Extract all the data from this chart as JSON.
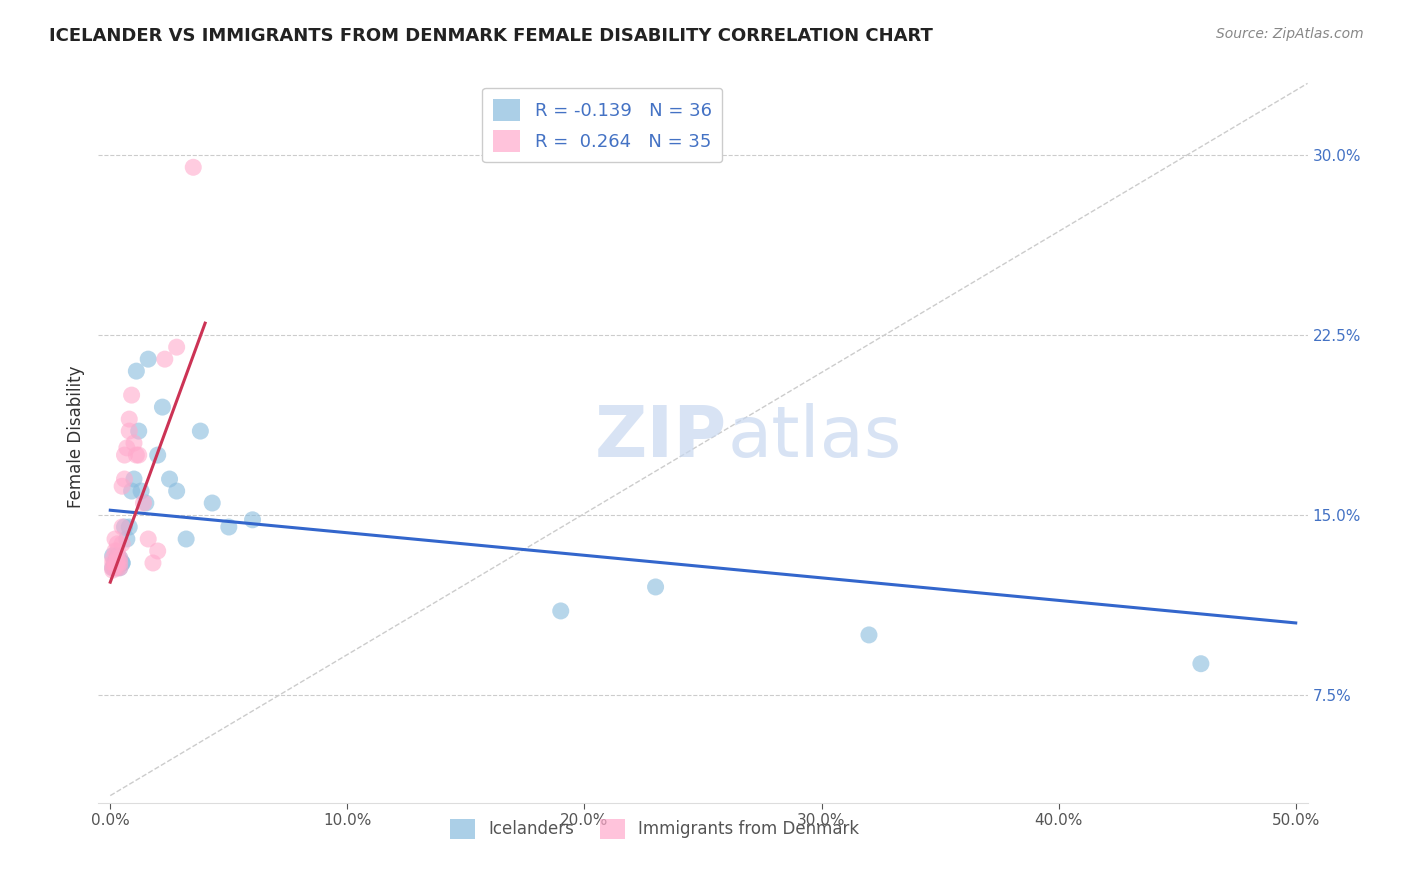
{
  "title": "ICELANDER VS IMMIGRANTS FROM DENMARK FEMALE DISABILITY CORRELATION CHART",
  "source": "Source: ZipAtlas.com",
  "xlabel_ticks": [
    "0.0%",
    "10.0%",
    "20.0%",
    "30.0%",
    "40.0%",
    "50.0%"
  ],
  "xlabel_vals": [
    0.0,
    0.1,
    0.2,
    0.3,
    0.4,
    0.5
  ],
  "ylabel_ticks": [
    "7.5%",
    "15.0%",
    "22.5%",
    "30.0%"
  ],
  "ylabel_vals": [
    0.075,
    0.15,
    0.225,
    0.3
  ],
  "xlim": [
    -0.005,
    0.505
  ],
  "ylim": [
    0.03,
    0.335
  ],
  "ylabel": "Female Disability",
  "legend1_label": "R = -0.139   N = 36",
  "legend2_label": "R =  0.264   N = 35",
  "legend1_color": "#88bbdd",
  "legend2_color": "#ffaacc",
  "watermark_zip": "ZIP",
  "watermark_atlas": "atlas",
  "icelanders_x": [
    0.001,
    0.001,
    0.002,
    0.002,
    0.002,
    0.003,
    0.003,
    0.003,
    0.003,
    0.004,
    0.004,
    0.005,
    0.005,
    0.006,
    0.007,
    0.008,
    0.009,
    0.01,
    0.011,
    0.012,
    0.013,
    0.015,
    0.016,
    0.02,
    0.022,
    0.025,
    0.028,
    0.032,
    0.038,
    0.043,
    0.05,
    0.06,
    0.19,
    0.23,
    0.32,
    0.46
  ],
  "icelanders_y": [
    0.128,
    0.133,
    0.13,
    0.13,
    0.128,
    0.133,
    0.132,
    0.13,
    0.128,
    0.128,
    0.132,
    0.13,
    0.13,
    0.145,
    0.14,
    0.145,
    0.16,
    0.165,
    0.21,
    0.185,
    0.16,
    0.155,
    0.215,
    0.175,
    0.195,
    0.165,
    0.16,
    0.14,
    0.185,
    0.155,
    0.145,
    0.148,
    0.11,
    0.12,
    0.1,
    0.088
  ],
  "denmark_x": [
    0.001,
    0.001,
    0.001,
    0.001,
    0.002,
    0.002,
    0.002,
    0.002,
    0.003,
    0.003,
    0.003,
    0.003,
    0.003,
    0.004,
    0.004,
    0.004,
    0.005,
    0.005,
    0.005,
    0.006,
    0.006,
    0.007,
    0.008,
    0.008,
    0.009,
    0.01,
    0.011,
    0.012,
    0.014,
    0.016,
    0.018,
    0.02,
    0.023,
    0.028,
    0.035
  ],
  "denmark_y": [
    0.128,
    0.127,
    0.13,
    0.132,
    0.128,
    0.13,
    0.135,
    0.14,
    0.13,
    0.128,
    0.132,
    0.135,
    0.138,
    0.132,
    0.128,
    0.13,
    0.138,
    0.145,
    0.162,
    0.165,
    0.175,
    0.178,
    0.185,
    0.19,
    0.2,
    0.18,
    0.175,
    0.175,
    0.155,
    0.14,
    0.13,
    0.135,
    0.215,
    0.22,
    0.295
  ],
  "denmark_outlier_x": [
    0.001
  ],
  "denmark_outlier_y": [
    0.295
  ],
  "blue_line_x": [
    0.0,
    0.5
  ],
  "blue_line_y": [
    0.152,
    0.105
  ],
  "pink_line_x": [
    0.0,
    0.04
  ],
  "pink_line_y": [
    0.122,
    0.23
  ],
  "dashed_line_x": [
    0.0,
    0.505
  ],
  "dashed_line_y": [
    0.033,
    0.33
  ]
}
